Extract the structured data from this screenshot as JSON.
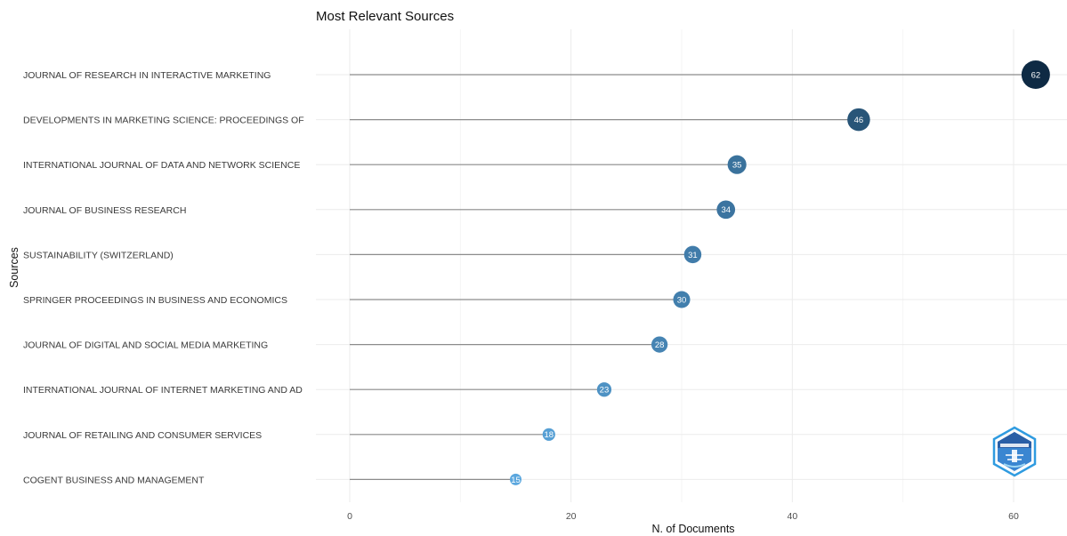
{
  "chart_data": {
    "type": "lollipop",
    "title": "Most Relevant Sources",
    "xlabel": "N. of Documents",
    "ylabel": "Sources",
    "xlim": [
      0,
      62
    ],
    "xticks": [
      0,
      20,
      40,
      60
    ],
    "grid": true,
    "categories": [
      "JOURNAL OF RESEARCH IN INTERACTIVE MARKETING",
      "DEVELOPMENTS IN MARKETING SCIENCE: PROCEEDINGS OF",
      "INTERNATIONAL JOURNAL OF DATA AND NETWORK SCIENCE",
      "JOURNAL OF BUSINESS RESEARCH",
      "SUSTAINABILITY (SWITZERLAND)",
      "SPRINGER PROCEEDINGS IN BUSINESS AND ECONOMICS",
      "JOURNAL OF DIGITAL AND SOCIAL MEDIA MARKETING",
      "INTERNATIONAL JOURNAL OF INTERNET MARKETING AND AD",
      "JOURNAL OF RETAILING AND CONSUMER SERVICES",
      "COGENT BUSINESS AND MANAGEMENT"
    ],
    "values": [
      62,
      46,
      35,
      34,
      31,
      30,
      28,
      23,
      18,
      15
    ],
    "color_scale": [
      "#5ba7de",
      "#0e2a44"
    ]
  },
  "logo": {
    "name": "bibliometrix-logo-icon",
    "colors": [
      "#4a90d9",
      "#1fa8e0"
    ]
  }
}
